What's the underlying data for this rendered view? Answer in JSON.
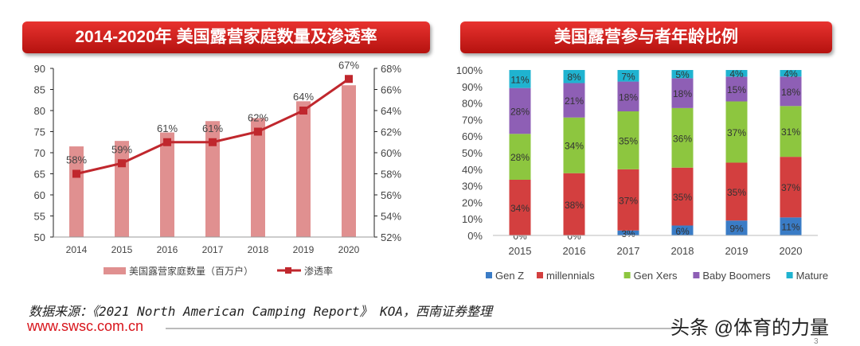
{
  "left_title": "2014-2020年 美国露营家庭数量及渗透率",
  "right_title": "美国露营参与者年龄比例",
  "chart_data": [
    {
      "type": "bar+line",
      "categories": [
        "2014",
        "2015",
        "2016",
        "2017",
        "2018",
        "2019",
        "2020"
      ],
      "series": [
        {
          "name": "美国露营家庭数量（百万户）",
          "type": "bar",
          "axis": "left",
          "color": "#e09090",
          "values": [
            71.5,
            72.8,
            74.8,
            77.5,
            78.2,
            82.2,
            86.0
          ]
        },
        {
          "name": "渗透率",
          "type": "line",
          "axis": "right",
          "color": "#c0272d",
          "values": [
            58,
            59,
            61,
            61,
            62,
            64,
            67
          ],
          "labels": [
            "58%",
            "59%",
            "61%",
            "61%",
            "62%",
            "64%",
            "67%"
          ]
        }
      ],
      "ylim": [
        50,
        90
      ],
      "yticks": [
        "50",
        "55",
        "60",
        "65",
        "70",
        "75",
        "80",
        "85",
        "90"
      ],
      "y2lim": [
        52,
        68
      ],
      "y2ticks": [
        "52%",
        "54%",
        "56%",
        "58%",
        "60%",
        "62%",
        "64%",
        "66%",
        "68%"
      ],
      "legend": "bottom",
      "grid": false
    },
    {
      "type": "stacked-bar",
      "categories": [
        "2015",
        "2016",
        "2017",
        "2018",
        "2019",
        "2020"
      ],
      "series": [
        {
          "name": "Gen Z",
          "color": "#3a7cc6",
          "values": [
            0,
            0,
            3,
            6,
            9,
            11
          ]
        },
        {
          "name": "millennials",
          "color": "#d33f3f",
          "values": [
            34,
            38,
            37,
            35,
            35,
            37
          ]
        },
        {
          "name": "Gen Xers",
          "color": "#8dc63f",
          "values": [
            28,
            34,
            35,
            36,
            37,
            31
          ]
        },
        {
          "name": "Baby Boomers",
          "color": "#8e5fb5",
          "values": [
            28,
            21,
            18,
            18,
            15,
            18
          ]
        },
        {
          "name": "Mature",
          "color": "#1fb3d0",
          "values": [
            11,
            8,
            7,
            5,
            4,
            4
          ]
        }
      ],
      "ylim": [
        0,
        100
      ],
      "yticks": [
        "0%",
        "10%",
        "20%",
        "30%",
        "40%",
        "50%",
        "60%",
        "70%",
        "80%",
        "90%",
        "100%"
      ],
      "legend": "bottom",
      "grid": false
    }
  ],
  "footer": {
    "source": "数据来源：《2021 North American Camping Report》 KOA，西南证券整理",
    "url": "www.swsc.com.cn",
    "watermark": "头条 @体育的力量",
    "page": "3"
  }
}
